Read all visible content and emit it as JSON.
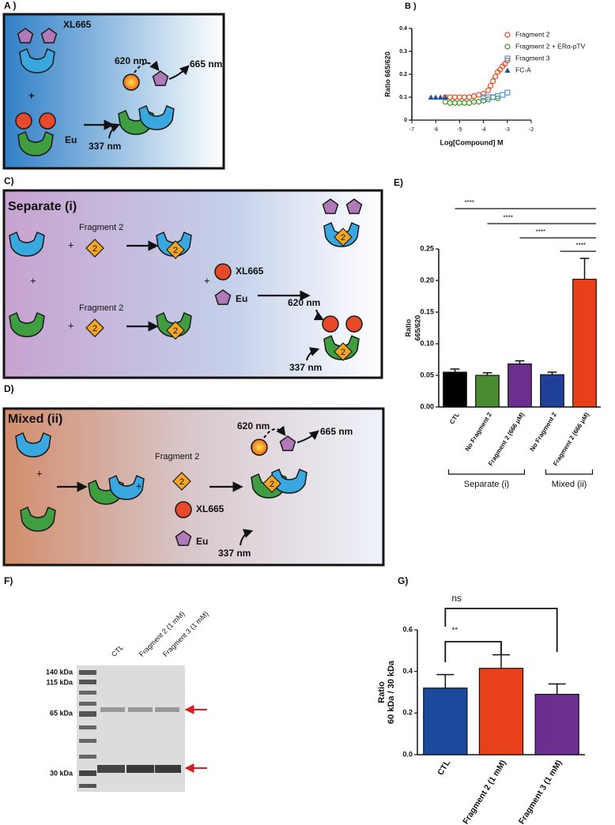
{
  "panels": {
    "A": {
      "label": "A )",
      "xl665": "XL665",
      "plus": "+",
      "eu": "Eu",
      "ex": "620 nm",
      "em": "665 nm",
      "exc": "337 nm"
    },
    "C": {
      "label": "C)",
      "title": "Separate (i)",
      "fragment": "Fragment 2",
      "plus": "+",
      "diamond": "2",
      "xl665": "XL665",
      "eu": "Eu",
      "ex": "620 nm",
      "exc": "337 nm"
    },
    "D": {
      "label": "D)",
      "title": "Mixed (ii)",
      "fragment": "Fragment 2",
      "plus": "+",
      "diamond": "2",
      "xl665": "XL665",
      "eu": "Eu",
      "ex": "620 nm",
      "em": "665 nm",
      "exc": "337 nm"
    },
    "F": {
      "label": "F)",
      "lanes": [
        "CTL",
        "Fragment 2 (1 mM)",
        "Fragment 3 (1 mM)"
      ],
      "markers": [
        "140 kDa",
        "115 kDa",
        "65 kDa",
        "30 kDa"
      ]
    }
  },
  "chart_data": [
    {
      "type": "scatter",
      "panel_label": "B )",
      "y_label": "Ratio 665/620",
      "x_label": "Log[Compound] M",
      "xlim": [
        -7,
        -2
      ],
      "xticks": [
        -7,
        -6,
        -5,
        -4,
        -3,
        -2
      ],
      "ylim": [
        0,
        0.4
      ],
      "yticks": [
        0,
        0.1,
        0.2,
        0.3,
        0.4
      ],
      "legend": "upper right",
      "series": [
        {
          "name": "Fragment 2",
          "color": "#e8542a",
          "marker": "circle",
          "x": [
            -5.6,
            -5.4,
            -5.2,
            -5,
            -4.8,
            -4.6,
            -4.4,
            -4.2,
            -4,
            -3.8,
            -3.7,
            -3.6,
            -3.5,
            -3.4,
            -3.3,
            -3.2,
            -3.1,
            -3
          ],
          "values": [
            0.1,
            0.1,
            0.1,
            0.1,
            0.1,
            0.1,
            0.105,
            0.11,
            0.115,
            0.13,
            0.15,
            0.17,
            0.19,
            0.21,
            0.22,
            0.235,
            0.245,
            0.26
          ]
        },
        {
          "name": "Fragment 2 + ERα-pTV",
          "color": "#4a9a3a",
          "marker": "circle",
          "x": [
            -5.6,
            -5.4,
            -5.2,
            -5,
            -4.8,
            -4.6,
            -4.4,
            -4.2,
            -4,
            -3.8,
            -3.6,
            -3.4
          ],
          "values": [
            0.08,
            0.075,
            0.075,
            0.075,
            0.075,
            0.075,
            0.08,
            0.08,
            0.085,
            0.09,
            0.1,
            0.095
          ]
        },
        {
          "name": "Fragment 3",
          "color": "#5b9bd5",
          "marker": "square",
          "x": [
            -4,
            -3.8,
            -3.6,
            -3.4,
            -3.2,
            -3
          ],
          "values": [
            0.1,
            0.1,
            0.1,
            0.105,
            0.11,
            0.12
          ]
        },
        {
          "name": "FC-A",
          "color": "#1f4e9a",
          "marker": "triangle",
          "x": [
            -6.2,
            -6,
            -5.8,
            -5.6
          ],
          "values": [
            0.1,
            0.1,
            0.1,
            0.1
          ]
        }
      ]
    },
    {
      "type": "bar",
      "panel_label": "E)",
      "y_label": [
        "Ratio",
        "665/620"
      ],
      "categories": [
        "CTL",
        "No Fragment 2",
        "Fragment 2 (666 μM)",
        "No Fragment 2",
        "Fragment 2 (666 μM)"
      ],
      "values": [
        0.055,
        0.05,
        0.068,
        0.051,
        0.202
      ],
      "errors": [
        0.005,
        0.004,
        0.005,
        0.004,
        0.033
      ],
      "colors": [
        "#000000",
        "#4a8a32",
        "#6a2f8f",
        "#1f3f99",
        "#e8401a"
      ],
      "ylim": [
        0,
        0.25
      ],
      "yticks": [
        {
          "value": 0,
          "label": "0.00"
        },
        {
          "value": 0.05,
          "label": "0.05"
        },
        {
          "value": 0.1,
          "label": "0.10"
        },
        {
          "value": 0.15,
          "label": "0.15"
        },
        {
          "value": 0.2,
          "label": "0.20"
        },
        {
          "value": 0.25,
          "label": "0.25"
        }
      ],
      "significance": [
        "****",
        "****",
        "****",
        "****"
      ],
      "group_labels": [
        "Separate (i)",
        "Mixed (ii)"
      ]
    },
    {
      "type": "bar",
      "panel_label": "G)",
      "y_label": [
        "Ratio",
        "60 kDa / 30 kDa"
      ],
      "categories": [
        "CTL",
        "Fragment 2 (1 mM)",
        "Fragment 3 (1 mM)"
      ],
      "values": [
        0.32,
        0.415,
        0.29
      ],
      "errors": [
        0.065,
        0.065,
        0.05
      ],
      "colors": [
        "#1b4a9c",
        "#e8401a",
        "#6a2f8f"
      ],
      "ylim": [
        0,
        0.6
      ],
      "yticks": [
        {
          "value": 0,
          "label": "0.0"
        },
        {
          "value": 0.2,
          "label": "0.2"
        },
        {
          "value": 0.4,
          "label": "0.4"
        },
        {
          "value": 0.6,
          "label": "0.6"
        }
      ],
      "significance": [
        "ns",
        "**"
      ]
    }
  ]
}
